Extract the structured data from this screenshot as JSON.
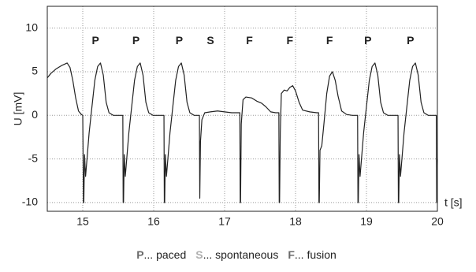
{
  "chart_data": {
    "type": "line",
    "xlabel": "t [s]",
    "ylabel": "U [mV]",
    "xlim": [
      14.5,
      20
    ],
    "ylim": [
      -11,
      12.5
    ],
    "xticks": [
      15,
      16,
      17,
      18,
      19,
      20
    ],
    "yticks": [
      -10,
      -5,
      0,
      5,
      10
    ],
    "grid": true,
    "x": [
      14.5,
      14.55,
      14.62,
      14.7,
      14.78,
      14.82,
      14.86,
      14.9,
      14.94,
      14.98,
      15.0,
      15.01,
      15.015,
      15.025,
      15.04,
      15.06,
      15.09,
      15.13,
      15.17,
      15.21,
      15.25,
      15.29,
      15.33,
      15.37,
      15.43,
      15.51,
      15.565,
      15.57,
      15.575,
      15.585,
      15.6,
      15.62,
      15.65,
      15.69,
      15.73,
      15.77,
      15.81,
      15.85,
      15.89,
      15.93,
      15.99,
      16.07,
      16.145,
      16.15,
      16.155,
      16.165,
      16.18,
      16.2,
      16.23,
      16.27,
      16.31,
      16.35,
      16.39,
      16.43,
      16.47,
      16.51,
      16.57,
      16.645,
      16.65,
      16.66,
      16.68,
      16.72,
      16.8,
      16.9,
      17.0,
      17.1,
      17.2,
      17.215,
      17.22,
      17.225,
      17.235,
      17.26,
      17.3,
      17.38,
      17.46,
      17.52,
      17.58,
      17.65,
      17.72,
      17.765,
      17.77,
      17.775,
      17.785,
      17.8,
      17.84,
      17.88,
      17.92,
      17.96,
      18.0,
      18.05,
      18.1,
      18.2,
      18.3,
      18.325,
      18.33,
      18.335,
      18.345,
      18.37,
      18.4,
      18.44,
      18.48,
      18.52,
      18.56,
      18.6,
      18.65,
      18.72,
      18.8,
      18.875,
      18.88,
      18.885,
      18.895,
      18.91,
      18.93,
      18.96,
      19.0,
      19.04,
      19.08,
      19.12,
      19.16,
      19.2,
      19.24,
      19.3,
      19.38,
      19.445,
      19.45,
      19.455,
      19.465,
      19.48,
      19.5,
      19.53,
      19.57,
      19.61,
      19.65,
      19.69,
      19.73,
      19.77,
      19.81,
      19.87,
      19.95,
      19.985,
      19.99,
      19.993,
      19.997,
      20.0
    ],
    "series": [
      {
        "color": "#222222",
        "values": [
          4.3,
          4.8,
          5.3,
          5.7,
          6.0,
          5.5,
          4.0,
          2.0,
          0.5,
          0.1,
          0.0,
          -10,
          -10,
          -4.5,
          -7,
          -5,
          -2,
          1,
          4,
          5.6,
          6,
          4.6,
          1.5,
          0.3,
          0,
          0,
          0,
          -10,
          -10,
          -4.5,
          -7,
          -5,
          -2,
          1,
          4,
          5.6,
          6,
          4.6,
          1.5,
          0.3,
          0,
          0,
          0,
          -10,
          -10,
          -4.5,
          -7,
          -5,
          -2,
          1,
          4,
          5.6,
          6,
          4.6,
          1.5,
          0.3,
          0,
          0,
          -9.5,
          -3,
          -0.5,
          0.3,
          0.4,
          0.5,
          0.4,
          0.3,
          0.3,
          0.3,
          -10,
          -10,
          -1,
          1.8,
          2.1,
          2.0,
          1.6,
          1.4,
          1.0,
          0.4,
          0.3,
          0.3,
          -10,
          -10,
          -2,
          2.5,
          2.9,
          2.8,
          3.2,
          3.4,
          2.8,
          1.5,
          0.6,
          0.4,
          0.3,
          0.3,
          -10,
          -10,
          -4,
          -3.5,
          -1,
          2.5,
          4.5,
          5,
          4,
          2.2,
          0.5,
          0.1,
          0,
          0,
          -10,
          -10,
          -4.5,
          -7,
          -5,
          -2,
          1,
          4,
          5.6,
          6,
          4.6,
          1.5,
          0.3,
          0,
          0,
          0,
          -10,
          -10,
          -4.5,
          -7,
          -5,
          -2,
          1,
          4,
          5.6,
          6,
          4.6,
          1.5,
          0.3,
          0,
          0,
          0,
          -10,
          -5,
          -7,
          -5
        ]
      }
    ],
    "annotations": [
      {
        "text": "P",
        "x": 15.18,
        "y": 8.5,
        "color": "#6a6a6a"
      },
      {
        "text": "P",
        "x": 15.75,
        "y": 8.5,
        "color": "#6a6a6a"
      },
      {
        "text": "P",
        "x": 16.36,
        "y": 8.5,
        "color": "#6a6a6a"
      },
      {
        "text": "S",
        "x": 16.8,
        "y": 8.5,
        "color": "#b0b0b0"
      },
      {
        "text": "F",
        "x": 17.35,
        "y": 8.5,
        "color": "#6a6a6a"
      },
      {
        "text": "F",
        "x": 17.92,
        "y": 8.5,
        "color": "#6a6a6a"
      },
      {
        "text": "F",
        "x": 18.48,
        "y": 8.5,
        "color": "#6a6a6a"
      },
      {
        "text": "P",
        "x": 19.02,
        "y": 8.5,
        "color": "#6a6a6a"
      },
      {
        "text": "P",
        "x": 19.62,
        "y": 8.5,
        "color": "#6a6a6a"
      }
    ],
    "legend": [
      {
        "letter": "P",
        "text": "... paced",
        "color": "#6a6a6a"
      },
      {
        "letter": "S",
        "text": "... spontaneous",
        "color": "#b0b0b0"
      },
      {
        "letter": "F",
        "text": "... fusion",
        "color": "#6a6a6a"
      }
    ]
  }
}
